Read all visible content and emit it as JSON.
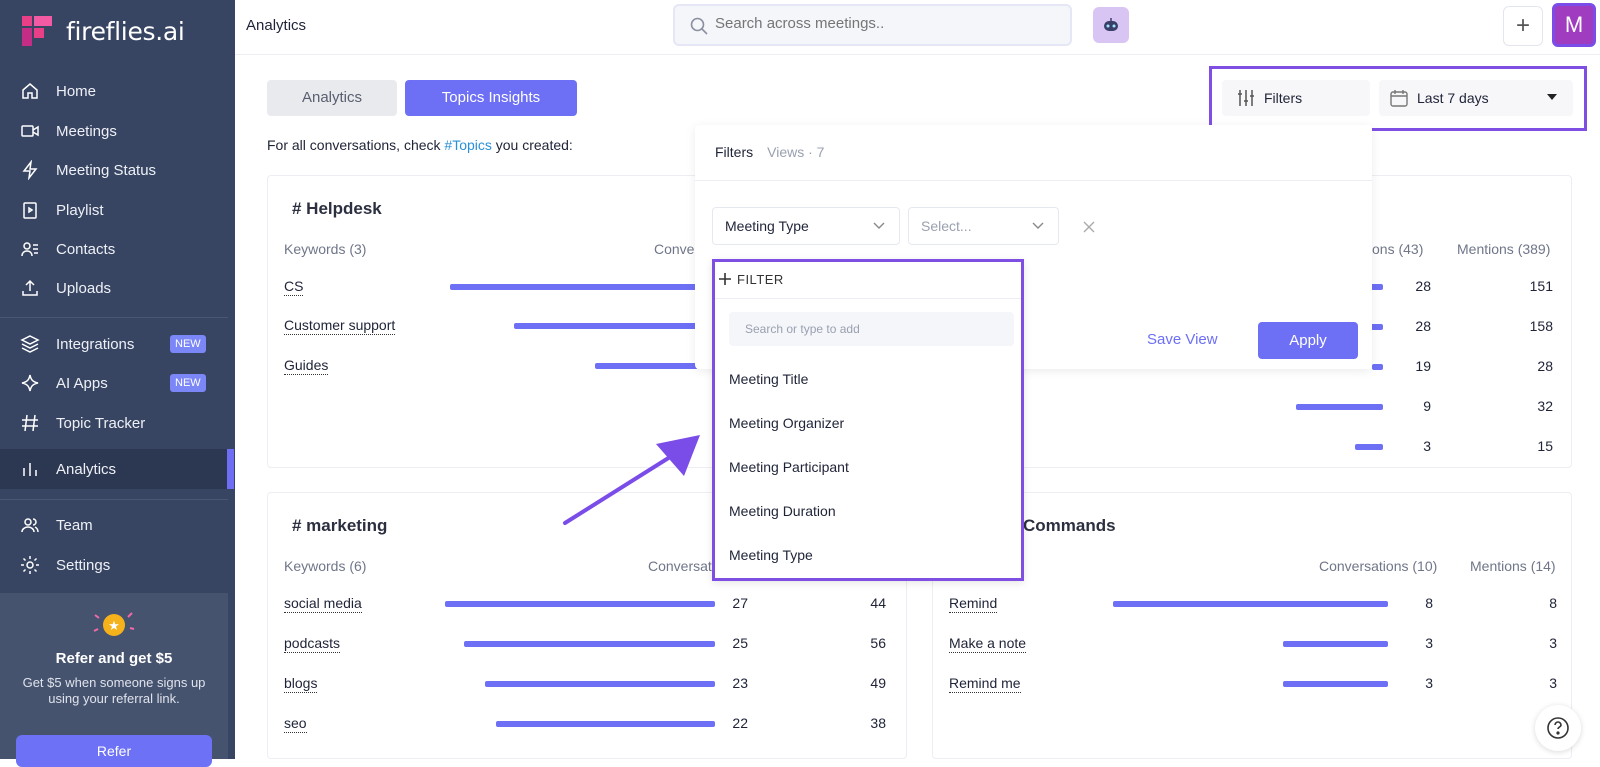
{
  "sidebar": {
    "brand": "fireflies.ai",
    "items": [
      {
        "label": "Home",
        "icon": "home-icon"
      },
      {
        "label": "Meetings",
        "icon": "video-icon"
      },
      {
        "label": "Meeting Status",
        "icon": "bolt-icon"
      },
      {
        "label": "Playlist",
        "icon": "playlist-icon"
      },
      {
        "label": "Contacts",
        "icon": "contacts-icon"
      },
      {
        "label": "Uploads",
        "icon": "upload-icon"
      },
      {
        "label": "Integrations",
        "icon": "layers-icon",
        "badge": "NEW"
      },
      {
        "label": "AI Apps",
        "icon": "sparkle-icon",
        "badge": "NEW"
      },
      {
        "label": "Topic Tracker",
        "icon": "hash-icon"
      },
      {
        "label": "Analytics",
        "icon": "bar-chart-icon"
      },
      {
        "label": "Team",
        "icon": "users-icon"
      },
      {
        "label": "Settings",
        "icon": "gear-icon"
      }
    ],
    "active_item": "Analytics",
    "refer": {
      "title": "Refer and get $5",
      "description": "Get $5 when someone signs up using your referral link.",
      "button": "Refer"
    }
  },
  "header": {
    "title": "Analytics",
    "search_placeholder": "Search across meetings..",
    "avatar_letter": "M"
  },
  "tabs": [
    {
      "label": "Analytics",
      "active": false
    },
    {
      "label": "Topics Insights",
      "active": true
    }
  ],
  "hint": {
    "prefix": "For all conversations, check ",
    "link": "#Topics",
    "suffix": " you created:"
  },
  "toolbar": {
    "filters_label": "Filters",
    "date_range": "Last 7 days"
  },
  "filters_panel": {
    "tab_filters": "Filters",
    "tab_views": "Views · 7",
    "filter_type": "Meeting Type",
    "value_placeholder": "Select...",
    "add_filter": "FILTER",
    "search_placeholder": "Search or type to add",
    "options": [
      "Meeting Title",
      "Meeting Organizer",
      "Meeting Participant",
      "Meeting Duration",
      "Meeting Type"
    ],
    "save_view": "Save View",
    "apply": "Apply"
  },
  "topics": {
    "helpdesk": {
      "title": "# Helpdesk",
      "keywords_header": "Keywords (3)",
      "conv_header": "Conver",
      "keywords": [
        {
          "name": "CS",
          "bar": 0.46
        },
        {
          "name": "Customer support",
          "bar": 0.34
        },
        {
          "name": "Guides",
          "bar": 0.19
        }
      ]
    },
    "right_top": {
      "conv_header": "tions (43)",
      "mentions_header": "Mentions (389)",
      "rows": [
        {
          "conv": "28",
          "mentions": "151",
          "bar": 0.05
        },
        {
          "conv": "28",
          "mentions": "158",
          "bar": 0.05
        },
        {
          "conv": "19",
          "mentions": "28",
          "bar": 0.04
        },
        {
          "conv": "9",
          "mentions": "32",
          "bar": 0.31
        },
        {
          "conv": "3",
          "mentions": "15",
          "bar": 0.1
        }
      ]
    },
    "marketing": {
      "title": "# marketing",
      "keywords_header": "Keywords (6)",
      "conv_header": "Conversat",
      "rows": [
        {
          "name": "social media",
          "conv": "27",
          "mentions": "44",
          "bar": 1.0
        },
        {
          "name": "podcasts",
          "conv": "25",
          "mentions": "56",
          "bar": 0.93
        },
        {
          "name": "blogs",
          "conv": "23",
          "mentions": "49",
          "bar": 0.85
        },
        {
          "name": "seo",
          "conv": "22",
          "mentions": "38",
          "bar": 0.81
        }
      ]
    },
    "commands": {
      "title": "Commands",
      "conv_header": "Conversations (10)",
      "mentions_header": "Mentions (14)",
      "rows": [
        {
          "name": "Remind",
          "conv": "8",
          "mentions": "8",
          "bar": 1.0
        },
        {
          "name": "Make a note",
          "conv": "3",
          "mentions": "3",
          "bar": 0.38
        },
        {
          "name": "Remind me",
          "conv": "3",
          "mentions": "3",
          "bar": 0.38
        }
      ]
    }
  },
  "colors": {
    "accent": "#6d6ff5",
    "sidebar": "#374562",
    "highlight": "#7f4fe4"
  }
}
